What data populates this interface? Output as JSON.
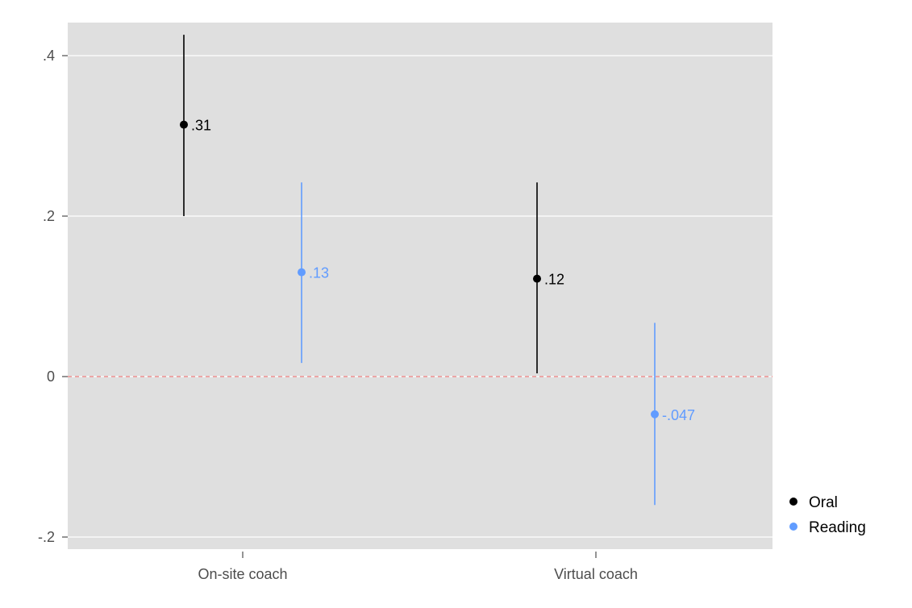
{
  "chart_data": {
    "type": "scatter",
    "title": "",
    "xlabel": "",
    "ylabel": "",
    "categories": [
      "On-site coach",
      "Virtual coach"
    ],
    "ylim": [
      -0.215,
      0.44
    ],
    "yticks": [
      {
        "value": -0.2,
        "label": "-.2"
      },
      {
        "value": 0,
        "label": "0"
      },
      {
        "value": 0.2,
        "label": ".2"
      },
      {
        "value": 0.4,
        "label": ".4"
      }
    ],
    "reference_line": {
      "value": 0,
      "style": "dashed",
      "color": "#f08080"
    },
    "grid": true,
    "legend_position": "right",
    "series": [
      {
        "name": "Oral",
        "color": "#000000",
        "points": [
          {
            "category": "On-site coach",
            "estimate": 0.314,
            "lower": 0.2,
            "upper": 0.426,
            "label": ".31"
          },
          {
            "category": "Virtual coach",
            "estimate": 0.122,
            "lower": 0.004,
            "upper": 0.242,
            "label": ".12"
          }
        ]
      },
      {
        "name": "Reading",
        "color": "#619cff",
        "points": [
          {
            "category": "On-site coach",
            "estimate": 0.13,
            "lower": 0.017,
            "upper": 0.242,
            "label": ".13"
          },
          {
            "category": "Virtual coach",
            "estimate": -0.047,
            "lower": -0.16,
            "upper": 0.067,
            "label": "-.047"
          }
        ]
      }
    ]
  }
}
